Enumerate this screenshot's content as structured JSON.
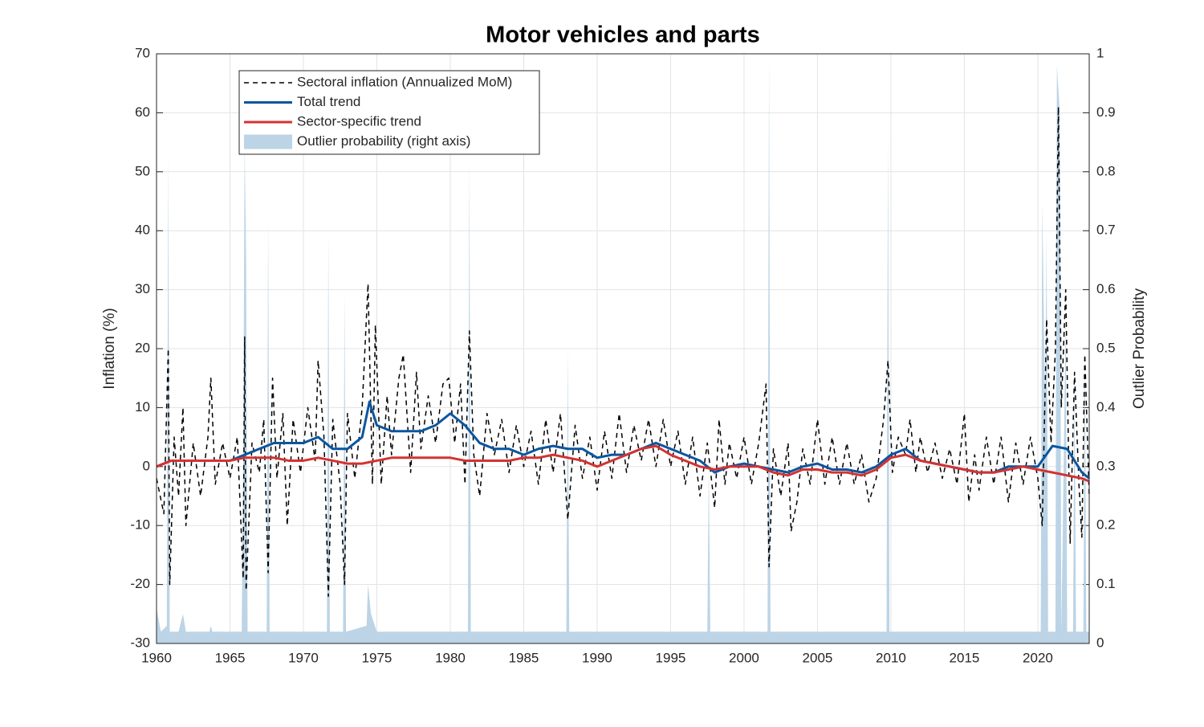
{
  "chart_data": {
    "type": "line",
    "title": "Motor vehicles and parts",
    "ylabel": "Inflation (%)",
    "y2label": "Outlier Probability",
    "xlim": [
      1960,
      2023.5
    ],
    "xticks": [
      1960,
      1965,
      1970,
      1975,
      1980,
      1985,
      1990,
      1995,
      2000,
      2005,
      2010,
      2015,
      2020
    ],
    "ylim": [
      -30,
      70
    ],
    "yticks": [
      -30,
      -20,
      -10,
      0,
      10,
      20,
      30,
      40,
      50,
      60,
      70
    ],
    "y2lim": [
      0,
      1
    ],
    "y2ticks": [
      0,
      0.1,
      0.2,
      0.3,
      0.4,
      0.5,
      0.6,
      0.7,
      0.8,
      0.9,
      1
    ],
    "grid": true,
    "legend": "upper left",
    "series": [
      {
        "name": "Outlier probability (right axis)",
        "kind": "area",
        "axis": "y2",
        "color": "#bcd4e6",
        "x": [
          1960,
          1960.3,
          1960.7,
          1960.8,
          1960.9,
          1961.5,
          1961.8,
          1962,
          1963.6,
          1963.7,
          1963.8,
          1965.8,
          1965.9,
          1966,
          1966.1,
          1966.2,
          1967.5,
          1967.6,
          1967.7,
          1971.6,
          1971.7,
          1971.8,
          1972.7,
          1972.8,
          1972.9,
          1974.3,
          1974.4,
          1974.6,
          1975,
          1981.2,
          1981.3,
          1981.4,
          1987.9,
          1988,
          1988.1,
          1997.5,
          1997.6,
          1997.7,
          2001.6,
          2001.7,
          2001.8,
          2009.7,
          2009.8,
          2009.9,
          2020.2,
          2020.3,
          2020.5,
          2020.6,
          2020.7,
          2021.2,
          2021.3,
          2021.5,
          2021.6,
          2021.9,
          2022,
          2022.4,
          2022.5,
          2022.6,
          2023.1,
          2023.2,
          2023.3,
          2023.5
        ],
        "values": [
          0.06,
          0.02,
          0.03,
          0.83,
          0.02,
          0.02,
          0.05,
          0.02,
          0.02,
          0.03,
          0.02,
          0.02,
          0.3,
          0.85,
          0.65,
          0.02,
          0.02,
          0.72,
          0.02,
          0.02,
          0.7,
          0.02,
          0.02,
          0.6,
          0.02,
          0.03,
          0.1,
          0.05,
          0.02,
          0.02,
          0.82,
          0.02,
          0.02,
          0.5,
          0.02,
          0.02,
          0.3,
          0.02,
          0.02,
          1,
          0.02,
          0.02,
          0.86,
          0.02,
          0.02,
          0.75,
          0.4,
          0.7,
          0.02,
          0.02,
          0.98,
          0.9,
          0.02,
          0.55,
          0.02,
          0.02,
          0.45,
          0.02,
          0.02,
          0.5,
          0.02,
          0.02
        ]
      },
      {
        "name": "Sectoral inflation (Annualized MoM)",
        "kind": "line",
        "linestyle": "dashed",
        "width": 1.5,
        "color": "#000000",
        "x": [
          1960,
          1960.5,
          1960.8,
          1960.9,
          1961.2,
          1961.5,
          1961.8,
          1962,
          1962.5,
          1963,
          1963.5,
          1963.7,
          1964,
          1964.5,
          1965,
          1965.5,
          1965.9,
          1966,
          1966.1,
          1966.5,
          1967,
          1967.3,
          1967.6,
          1967.9,
          1968.2,
          1968.6,
          1968.9,
          1969.3,
          1969.8,
          1970.3,
          1970.8,
          1971,
          1971.4,
          1971.7,
          1972,
          1972.5,
          1972.8,
          1973,
          1973.5,
          1974,
          1974.4,
          1974.7,
          1974.9,
          1975.3,
          1975.7,
          1976,
          1976.5,
          1976.8,
          1977.3,
          1977.7,
          1978,
          1978.5,
          1979,
          1979.5,
          1979.9,
          1980.3,
          1980.7,
          1981,
          1981.3,
          1981.6,
          1982,
          1982.5,
          1983,
          1983.5,
          1984,
          1984.5,
          1985,
          1985.5,
          1986,
          1986.5,
          1987,
          1987.5,
          1988,
          1988.5,
          1989,
          1989.5,
          1990,
          1990.5,
          1991,
          1991.5,
          1992,
          1992.5,
          1993,
          1993.5,
          1994,
          1994.5,
          1995,
          1995.5,
          1996,
          1996.5,
          1997,
          1997.5,
          1998,
          1998.3,
          1998.7,
          1999,
          1999.5,
          2000,
          2000.5,
          2001,
          2001.5,
          2001.7,
          2002,
          2002.5,
          2003,
          2003.2,
          2003.6,
          2004,
          2004.5,
          2005,
          2005.5,
          2006,
          2006.5,
          2007,
          2007.5,
          2008,
          2008.5,
          2009,
          2009.5,
          2009.8,
          2010.1,
          2010.5,
          2011,
          2011.3,
          2011.7,
          2012,
          2012.5,
          2013,
          2013.5,
          2014,
          2014.5,
          2015,
          2015.3,
          2015.7,
          2016,
          2016.5,
          2017,
          2017.5,
          2018,
          2018.5,
          2019,
          2019.5,
          2020,
          2020.3,
          2020.6,
          2020.9,
          2021.2,
          2021.4,
          2021.6,
          2021.9,
          2022.2,
          2022.5,
          2022.8,
          2023,
          2023.2,
          2023.5
        ],
        "values": [
          -2,
          -8,
          20,
          -20,
          5,
          -5,
          10,
          -10,
          4,
          -5,
          5,
          15,
          -3,
          4,
          -2,
          5,
          -19,
          22,
          -21,
          4,
          -1,
          8,
          -18,
          15,
          -2,
          9,
          -10,
          8,
          -1,
          10,
          1,
          18,
          5,
          -22,
          8,
          -3,
          -20,
          9,
          -2,
          10,
          31,
          -3,
          24,
          -3,
          12,
          2,
          15,
          19,
          -1,
          16,
          3,
          12,
          4,
          14,
          15,
          4,
          14,
          -3,
          23,
          2,
          -5,
          9,
          2,
          8,
          -1,
          7,
          0,
          6,
          -3,
          8,
          -1,
          9,
          -9,
          7,
          -2,
          5,
          -4,
          6,
          -2,
          9,
          -1,
          7,
          1,
          8,
          0,
          8,
          0,
          6,
          -3,
          5,
          -5,
          4,
          -7,
          8,
          -3,
          4,
          -2,
          5,
          -3,
          4,
          14,
          -17,
          3,
          -5,
          4,
          -11,
          -6,
          3,
          -3,
          8,
          -3,
          5,
          -3,
          4,
          -3,
          2,
          -6,
          -2,
          8,
          18,
          -1,
          5,
          2,
          8,
          -1,
          5,
          -1,
          4,
          -2,
          3,
          -3,
          9,
          -6,
          2,
          -4,
          5,
          -3,
          5,
          -6,
          4,
          -3,
          5,
          -2,
          -10,
          25,
          4,
          20,
          61,
          10,
          30,
          -13,
          16,
          -3,
          -12,
          19,
          -5
        ]
      },
      {
        "name": "Total trend",
        "kind": "line",
        "linestyle": "solid",
        "width": 3,
        "color": "#0b56a0",
        "x": [
          1960,
          1961,
          1962,
          1963,
          1964,
          1965,
          1966,
          1967,
          1968,
          1969,
          1970,
          1971,
          1972,
          1973,
          1974,
          1974.5,
          1975,
          1976,
          1977,
          1978,
          1979,
          1980,
          1981,
          1982,
          1983,
          1984,
          1985,
          1986,
          1987,
          1988,
          1989,
          1990,
          1991,
          1992,
          1993,
          1994,
          1995,
          1996,
          1997,
          1998,
          1999,
          2000,
          2001,
          2002,
          2003,
          2004,
          2005,
          2006,
          2007,
          2008,
          2009,
          2010,
          2011,
          2012,
          2013,
          2014,
          2015,
          2016,
          2017,
          2018,
          2019,
          2020,
          2021,
          2022,
          2023,
          2023.5
        ],
        "values": [
          0,
          1,
          1,
          1,
          1,
          1,
          2,
          3,
          4,
          4,
          4,
          5,
          3,
          3,
          5,
          11,
          7,
          6,
          6,
          6,
          7,
          9,
          7,
          4,
          3,
          3,
          2,
          3,
          3.5,
          3,
          3,
          1.5,
          2,
          2,
          3,
          4,
          3,
          2,
          1,
          -1,
          0,
          0.5,
          0,
          -0.5,
          -1,
          0,
          0.5,
          -0.5,
          -0.5,
          -1,
          0,
          2,
          3,
          1,
          0.5,
          0,
          -0.5,
          -1,
          -1,
          0,
          0,
          0,
          3.5,
          3,
          -1,
          -2
        ]
      },
      {
        "name": "Sector-specific trend",
        "kind": "line",
        "linestyle": "solid",
        "width": 3,
        "color": "#d43232",
        "x": [
          1960,
          1961,
          1962,
          1963,
          1964,
          1965,
          1966,
          1967,
          1968,
          1969,
          1970,
          1971,
          1972,
          1973,
          1974,
          1975,
          1976,
          1977,
          1978,
          1979,
          1980,
          1981,
          1982,
          1983,
          1984,
          1985,
          1986,
          1987,
          1988,
          1989,
          1990,
          1991,
          1992,
          1993,
          1994,
          1995,
          1996,
          1997,
          1998,
          1999,
          2000,
          2001,
          2002,
          2003,
          2004,
          2005,
          2006,
          2007,
          2008,
          2009,
          2010,
          2011,
          2012,
          2013,
          2014,
          2015,
          2016,
          2017,
          2018,
          2019,
          2020,
          2021,
          2022,
          2023,
          2023.5
        ],
        "values": [
          0,
          1,
          1,
          1,
          1,
          1,
          1.5,
          1.5,
          1.5,
          1,
          1,
          1.5,
          1,
          0.5,
          0.5,
          1,
          1.5,
          1.5,
          1.5,
          1.5,
          1.5,
          1,
          1,
          1,
          1,
          1.5,
          1.5,
          2,
          1.5,
          1,
          0,
          1,
          2,
          3,
          3.5,
          2,
          1,
          0,
          -0.5,
          0,
          0,
          0,
          -1,
          -1.5,
          -0.5,
          -0.5,
          -1,
          -1,
          -1.5,
          -0.5,
          1.5,
          2,
          1,
          0.5,
          0,
          -0.5,
          -1,
          -1,
          -0.5,
          0,
          -0.5,
          -1,
          -1.5,
          -2,
          -2.5
        ]
      }
    ]
  }
}
